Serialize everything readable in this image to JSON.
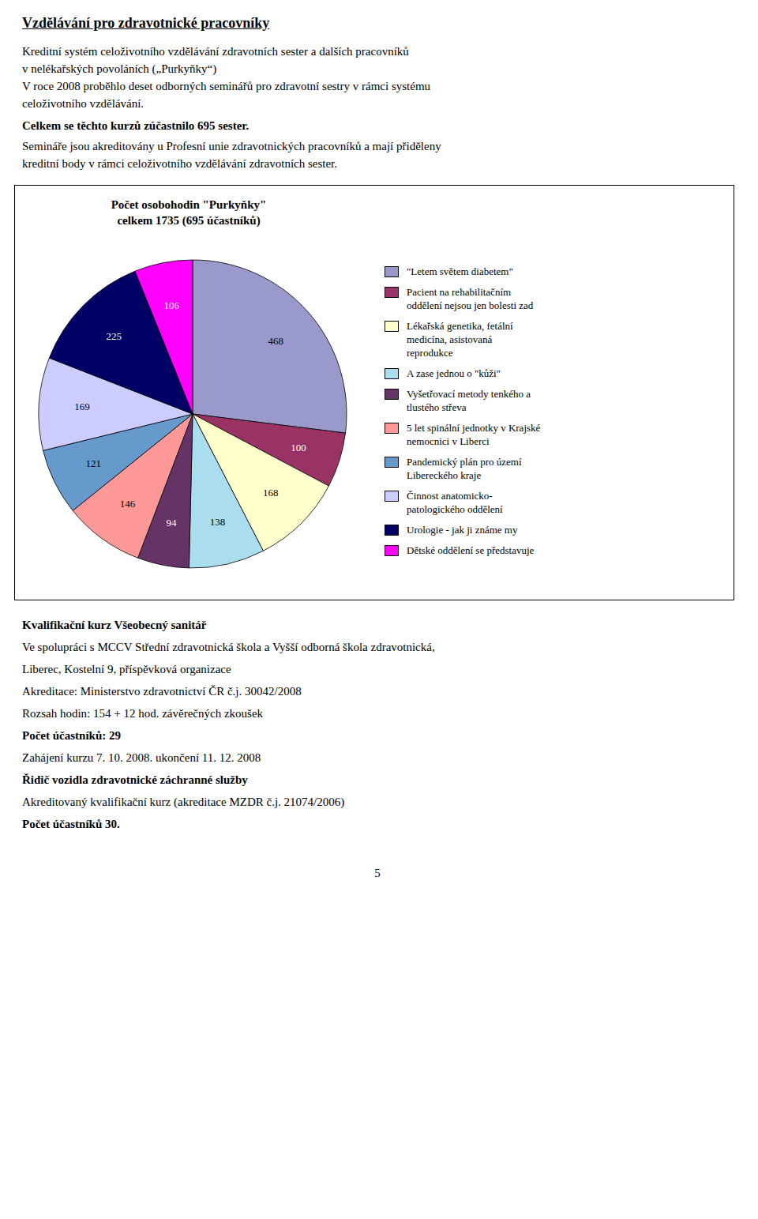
{
  "chart_data": {
    "type": "pie",
    "title": "Počet osobohodin \"Purkyňky\"",
    "subtitle": "celkem 1735 (695 účastníků)",
    "categories": [
      "\"Letem světem diabetem\"",
      "Pacient na rehabilitačním\noddělení nejsou jen bolesti zad",
      "Lékařská genetika, fetální\nmedicína, asistovaná\nreprodukce",
      "A zase jednou o \"kůži\"",
      "Vyšetřovací metody tenkého a\ntlustého střeva",
      "5 let spinální jednotky v Krajské\nnemocnici v Liberci",
      "Pandemický plán pro území\nLibereckého kraje",
      "Činnost anatomicko-\npatologického oddělení",
      "Urologie - jak ji známe my",
      "Dětské oddělení se představuje"
    ],
    "values": [
      468,
      100,
      168,
      138,
      94,
      146,
      121,
      169,
      225,
      106
    ],
    "colors": [
      "#9999CC",
      "#993366",
      "#FFFFCC",
      "#AADDEE",
      "#663366",
      "#FF9999",
      "#6699CC",
      "#CCCCFF",
      "#000066",
      "#FF00FF"
    ],
    "data_labels": true,
    "legend": "right",
    "annotations": [
      "Vzdělávání pro zdravotnické pracovníky",
      "Kreditní systém celoživotního vzdělávání zdravotních sester a dalších pracovníků",
      "v nelékařských povoláních („Purkyňky“)",
      "V roce 2008 proběhlo deset odborných seminářů pro zdravotní sestry v rámci systému",
      "celoživotního vzdělávání.",
      "Celkem se těchto kurzů zúčastnilo 695 sester.",
      "Semináře jsou akreditovány u Profesní unie zdravotnických pracovníků a mají přiděleny",
      "kreditní body v rámci celoživotního vzdělávání zdravotních sester.",
      "Kvalifikační kurz Všeobecný sanitář",
      "Ve spolupráci s MCCV Střední zdravotnická škola a Vyšší odborná škola zdravotnická,",
      "Liberec, Kostelní 9, příspěvková organizace",
      "Akreditace: Ministerstvo zdravotnictví ČR č.j. 30042/2008",
      "Rozsah hodin: 154 + 12 hod. závěrečných zkoušek",
      "Počet účastníků: 29",
      "Zahájení kurzu 7. 10. 2008. ukončení 11. 12. 2008",
      "Řidič vozidla zdravotnické záchranné služby",
      "Akreditovaný kvalifikační kurz (akreditace MZDR č.j. 21074/2006)",
      "Počet účastníků 30.",
      "5"
    ]
  }
}
